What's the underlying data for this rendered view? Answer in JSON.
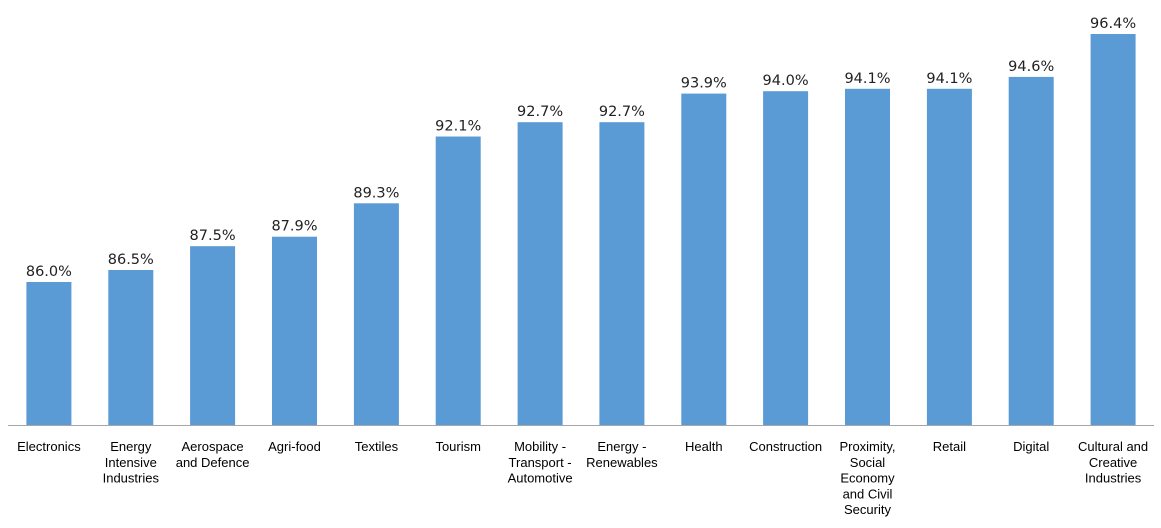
{
  "chart_data": {
    "type": "bar",
    "title": "",
    "xlabel": "",
    "ylabel": "",
    "ylim": [
      80,
      97
    ],
    "value_suffix": "%",
    "grid": false,
    "legend": "none",
    "bar_color": "#5b9bd5",
    "axis_color": "#a6a6a6",
    "categories": [
      [
        "Electronics"
      ],
      [
        "Energy",
        "Intensive",
        "Industries"
      ],
      [
        "Aerospace",
        "and Defence"
      ],
      [
        "Agri-food"
      ],
      [
        "Textiles"
      ],
      [
        "Tourism"
      ],
      [
        "Mobility -",
        "Transport -",
        "Automotive"
      ],
      [
        "Energy -",
        "Renewables"
      ],
      [
        "Health"
      ],
      [
        "Construction"
      ],
      [
        "Proximity,",
        "Social",
        "Economy",
        "and Civil",
        "Security"
      ],
      [
        "Retail"
      ],
      [
        "Digital"
      ],
      [
        "Cultural and",
        "Creative",
        "Industries"
      ]
    ],
    "values": [
      86.0,
      86.5,
      87.5,
      87.9,
      89.3,
      92.1,
      92.7,
      92.7,
      93.9,
      94.0,
      94.1,
      94.1,
      94.6,
      96.4
    ],
    "data_labels": [
      "86.0%",
      "86.5%",
      "87.5%",
      "87.9%",
      "89.3%",
      "92.1%",
      "92.7%",
      "92.7%",
      "93.9%",
      "94.0%",
      "94.1%",
      "94.1%",
      "94.6%",
      "96.4%"
    ]
  }
}
